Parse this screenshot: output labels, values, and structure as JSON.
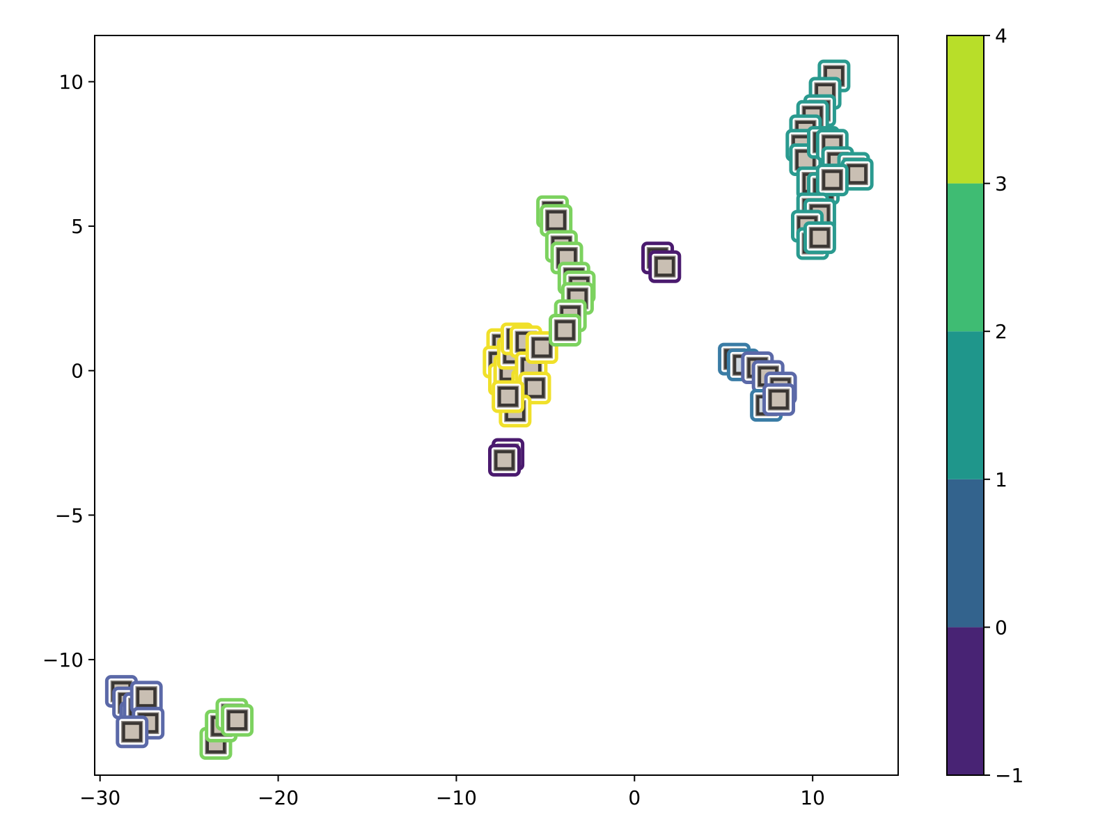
{
  "chart_data": {
    "type": "scatter",
    "title": "",
    "xlabel": "",
    "ylabel": "",
    "xlim": [
      -30.3,
      14.8
    ],
    "ylim": [
      -14.0,
      11.6
    ],
    "x_ticks": [
      {
        "value": -30,
        "label": "−30"
      },
      {
        "value": -20,
        "label": "−20"
      },
      {
        "value": -10,
        "label": "−10"
      },
      {
        "value": 0,
        "label": "0"
      },
      {
        "value": 10,
        "label": "10"
      }
    ],
    "y_ticks": [
      {
        "value": 10,
        "label": "10"
      },
      {
        "value": 5,
        "label": "5"
      },
      {
        "value": 0,
        "label": "0"
      },
      {
        "value": -5,
        "label": "−5"
      },
      {
        "value": -10,
        "label": "−10"
      }
    ],
    "grid": false,
    "marker": "image-thumbnail-with-colored-frame",
    "colorbar": {
      "range": [
        -1,
        4
      ],
      "ticks": [
        {
          "value": 4,
          "label": "4"
        },
        {
          "value": 3,
          "label": "3"
        },
        {
          "value": 2,
          "label": "2"
        },
        {
          "value": 1,
          "label": "1"
        },
        {
          "value": 0,
          "label": "0"
        },
        {
          "value": -1,
          "label": "−1"
        }
      ],
      "bands": [
        {
          "from": -1,
          "to": 0,
          "color": "#482374"
        },
        {
          "from": 0,
          "to": 1,
          "color": "#33638d"
        },
        {
          "from": 1,
          "to": 2,
          "color": "#1f968b"
        },
        {
          "from": 2,
          "to": 3,
          "color": "#3fbc73"
        },
        {
          "from": 3,
          "to": 4,
          "color": "#b8de29"
        }
      ]
    },
    "frame_colors": {
      "-1": "#4a1a6e",
      "0": "#5b69a8",
      "1": "#2a9a8f",
      "2": "#7cd25f",
      "3": "#f0e02a",
      "outlier_blue": "#3a7ca5"
    },
    "points": [
      {
        "x": -28.8,
        "y": -11.1,
        "cluster": "0"
      },
      {
        "x": -28.4,
        "y": -11.5,
        "cluster": "0"
      },
      {
        "x": -28.0,
        "y": -12.0,
        "cluster": "0"
      },
      {
        "x": -27.8,
        "y": -11.7,
        "cluster": "0"
      },
      {
        "x": -27.4,
        "y": -11.3,
        "cluster": "0"
      },
      {
        "x": -27.3,
        "y": -12.2,
        "cluster": "0"
      },
      {
        "x": -28.2,
        "y": -12.5,
        "cluster": "0"
      },
      {
        "x": -23.5,
        "y": -12.9,
        "cluster": "2"
      },
      {
        "x": -23.2,
        "y": -12.3,
        "cluster": "2"
      },
      {
        "x": -22.6,
        "y": -11.9,
        "cluster": "2"
      },
      {
        "x": -22.3,
        "y": -12.1,
        "cluster": "2"
      },
      {
        "x": -7.4,
        "y": 0.9,
        "cluster": "3"
      },
      {
        "x": -7.6,
        "y": 0.3,
        "cluster": "3"
      },
      {
        "x": -7.3,
        "y": -0.3,
        "cluster": "3"
      },
      {
        "x": -7.0,
        "y": 0.0,
        "cluster": "3"
      },
      {
        "x": -6.8,
        "y": 0.6,
        "cluster": "3"
      },
      {
        "x": -6.6,
        "y": 1.1,
        "cluster": "3"
      },
      {
        "x": -6.1,
        "y": 1.0,
        "cluster": "3"
      },
      {
        "x": -6.0,
        "y": -0.5,
        "cluster": "3"
      },
      {
        "x": -5.8,
        "y": 0.1,
        "cluster": "3"
      },
      {
        "x": -5.6,
        "y": -0.6,
        "cluster": "3"
      },
      {
        "x": -6.7,
        "y": -1.4,
        "cluster": "3"
      },
      {
        "x": -7.1,
        "y": -0.9,
        "cluster": "3"
      },
      {
        "x": -5.2,
        "y": 0.8,
        "cluster": "3"
      },
      {
        "x": -7.1,
        "y": -2.9,
        "cluster": "-1"
      },
      {
        "x": -7.3,
        "y": -3.1,
        "cluster": "-1"
      },
      {
        "x": -4.6,
        "y": 5.5,
        "cluster": "2"
      },
      {
        "x": -4.4,
        "y": 5.2,
        "cluster": "2"
      },
      {
        "x": -4.1,
        "y": 4.3,
        "cluster": "2"
      },
      {
        "x": -3.8,
        "y": 3.9,
        "cluster": "2"
      },
      {
        "x": -3.4,
        "y": 3.2,
        "cluster": "2"
      },
      {
        "x": -3.1,
        "y": 2.9,
        "cluster": "2"
      },
      {
        "x": -3.2,
        "y": 2.5,
        "cluster": "2"
      },
      {
        "x": -3.6,
        "y": 1.9,
        "cluster": "2"
      },
      {
        "x": -3.9,
        "y": 1.4,
        "cluster": "2"
      },
      {
        "x": 1.3,
        "y": 3.9,
        "cluster": "-1"
      },
      {
        "x": 1.7,
        "y": 3.6,
        "cluster": "-1"
      },
      {
        "x": 5.6,
        "y": 0.4,
        "cluster": "outlier_blue"
      },
      {
        "x": 6.1,
        "y": 0.2,
        "cluster": "outlier_blue"
      },
      {
        "x": 6.9,
        "y": 0.1,
        "cluster": "0"
      },
      {
        "x": 7.5,
        "y": -0.2,
        "cluster": "0"
      },
      {
        "x": 8.2,
        "y": -0.6,
        "cluster": "0"
      },
      {
        "x": 7.4,
        "y": -1.2,
        "cluster": "outlier_blue"
      },
      {
        "x": 8.1,
        "y": -1.0,
        "cluster": "0"
      },
      {
        "x": 11.2,
        "y": 10.2,
        "cluster": "1"
      },
      {
        "x": 10.7,
        "y": 9.6,
        "cluster": "1"
      },
      {
        "x": 10.4,
        "y": 9.0,
        "cluster": "1"
      },
      {
        "x": 10.0,
        "y": 8.8,
        "cluster": "1"
      },
      {
        "x": 9.6,
        "y": 8.3,
        "cluster": "1"
      },
      {
        "x": 9.4,
        "y": 7.8,
        "cluster": "1"
      },
      {
        "x": 9.6,
        "y": 7.3,
        "cluster": "1"
      },
      {
        "x": 10.6,
        "y": 7.9,
        "cluster": "1"
      },
      {
        "x": 11.1,
        "y": 7.8,
        "cluster": "1"
      },
      {
        "x": 11.4,
        "y": 7.2,
        "cluster": "1"
      },
      {
        "x": 12.3,
        "y": 7.0,
        "cluster": "1"
      },
      {
        "x": 12.5,
        "y": 6.8,
        "cluster": "1"
      },
      {
        "x": 10.0,
        "y": 6.5,
        "cluster": "1"
      },
      {
        "x": 10.6,
        "y": 6.3,
        "cluster": "1"
      },
      {
        "x": 11.1,
        "y": 6.6,
        "cluster": "1"
      },
      {
        "x": 10.0,
        "y": 5.6,
        "cluster": "1"
      },
      {
        "x": 10.4,
        "y": 5.4,
        "cluster": "1"
      },
      {
        "x": 9.7,
        "y": 5.0,
        "cluster": "1"
      },
      {
        "x": 10.0,
        "y": 4.4,
        "cluster": "1"
      },
      {
        "x": 10.4,
        "y": 4.6,
        "cluster": "1"
      }
    ]
  }
}
